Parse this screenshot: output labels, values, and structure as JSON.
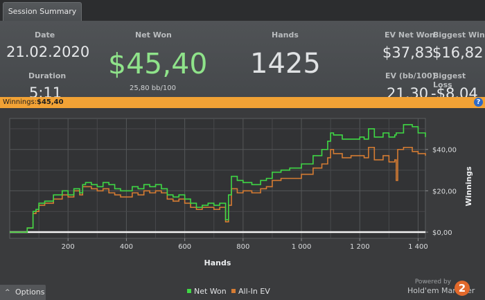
{
  "tab": {
    "label": "Session Summary"
  },
  "summary": {
    "date_label": "Date",
    "date_value": "21.02.2020",
    "duration_label": "Duration",
    "duration_value": "5:11",
    "netwon_label": "Net Won",
    "netwon_value": "$45,40",
    "bb_value": "25,80 bb/100",
    "hands_label": "Hands",
    "hands_value": "1425",
    "evnet_label": "EV Net Won",
    "evnet_value": "$37,83",
    "bigwin_label": "Biggest Win",
    "bigwin_value": "$16,82",
    "evbb_label": "EV (bb/100)",
    "evbb_value": "21,30",
    "bigloss_label": "Biggest Loss",
    "bigloss_value": "-$8,04"
  },
  "winbar": {
    "label": "Winnings:",
    "amount": "$45,40",
    "help": "?"
  },
  "options": {
    "label": "Options",
    "caret": "^"
  },
  "legend": {
    "netwon": "Net Won",
    "allin": "All-In EV"
  },
  "brand": {
    "powered": "Powered by",
    "name": "Hold'em Manager",
    "logo": "2"
  },
  "colors": {
    "netwon": "#3fd845",
    "allin": "#d67c33",
    "accent": "#f2a235"
  },
  "chart_data": {
    "type": "line",
    "xlabel": "Hands",
    "ylabel": "Winnings",
    "x_ticks": [
      "200",
      "400",
      "600",
      "800",
      "1 000",
      "1 200",
      "1 400"
    ],
    "y_ticks": [
      "$0,00",
      "$20,00",
      "$40,00"
    ],
    "xlim": [
      0,
      1425
    ],
    "ylim": [
      -3,
      55
    ],
    "series": [
      {
        "name": "Net Won",
        "x": [
          0,
          40,
          60,
          80,
          90,
          100,
          120,
          150,
          180,
          200,
          220,
          240,
          250,
          260,
          280,
          300,
          320,
          340,
          360,
          380,
          400,
          420,
          440,
          460,
          480,
          500,
          520,
          540,
          560,
          580,
          600,
          620,
          640,
          660,
          680,
          700,
          720,
          735,
          740,
          745,
          750,
          760,
          780,
          800,
          830,
          860,
          880,
          900,
          930,
          960,
          1000,
          1040,
          1070,
          1090,
          1100,
          1110,
          1140,
          1170,
          1200,
          1215,
          1230,
          1250,
          1280,
          1300,
          1320,
          1325,
          1330,
          1350,
          1380,
          1400,
          1425
        ],
        "values": [
          0,
          0,
          2,
          10,
          11,
          14,
          15,
          18,
          20,
          18,
          21,
          19,
          23,
          24,
          23,
          22,
          24,
          23,
          21,
          20,
          20,
          22,
          21,
          23,
          22,
          23,
          21,
          18,
          17,
          18,
          16,
          14,
          12,
          13,
          14,
          13,
          14,
          14,
          6,
          6,
          18,
          27,
          25,
          24,
          23,
          25,
          26,
          29,
          30,
          31,
          33,
          37,
          40,
          44,
          48,
          47,
          45,
          45,
          46,
          45,
          50,
          46,
          48,
          46,
          47,
          48,
          48,
          52,
          51,
          48,
          46
        ]
      },
      {
        "name": "All-In EV",
        "x": [
          0,
          40,
          60,
          80,
          90,
          100,
          120,
          150,
          180,
          200,
          220,
          240,
          250,
          260,
          280,
          300,
          320,
          340,
          360,
          380,
          400,
          420,
          440,
          460,
          480,
          500,
          520,
          540,
          560,
          580,
          600,
          620,
          640,
          660,
          680,
          700,
          720,
          735,
          740,
          745,
          750,
          760,
          780,
          800,
          830,
          860,
          880,
          900,
          930,
          960,
          1000,
          1040,
          1070,
          1090,
          1100,
          1110,
          1140,
          1170,
          1200,
          1215,
          1230,
          1250,
          1280,
          1300,
          1320,
          1325,
          1330,
          1350,
          1380,
          1400,
          1425
        ],
        "values": [
          0,
          0,
          2,
          9,
          10,
          13,
          14,
          16,
          18,
          17,
          20,
          18,
          22,
          22,
          21,
          20,
          21,
          19,
          18,
          17,
          17,
          19,
          18,
          20,
          19,
          20,
          19,
          16,
          15,
          16,
          14,
          12,
          11,
          12,
          12,
          11,
          12,
          12,
          5,
          5,
          13,
          21,
          19,
          20,
          19,
          21,
          22,
          25,
          26,
          26,
          28,
          31,
          33,
          36,
          40,
          38,
          36,
          37,
          37,
          36,
          41,
          35,
          37,
          34,
          35,
          25,
          40,
          41,
          39,
          38,
          37
        ]
      }
    ]
  }
}
